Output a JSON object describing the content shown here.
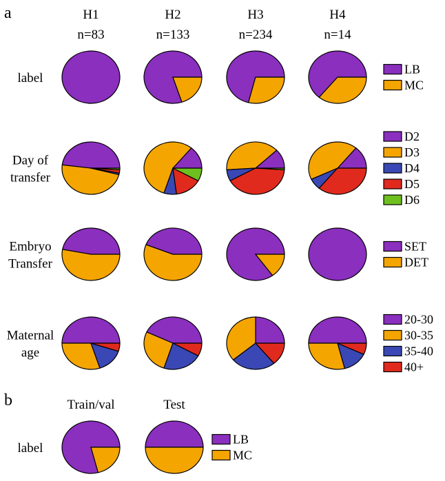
{
  "panels": [
    "a",
    "b"
  ],
  "colors": {
    "LB": "#8b2fbf",
    "MC": "#f5a500",
    "D2": "#8b2fbf",
    "D3": "#f5a500",
    "D4": "#3a48b5",
    "D5": "#e02a1d",
    "D6": "#6ec01e",
    "SET": "#8b2fbf",
    "DET": "#f5a500",
    "20-30": "#8b2fbf",
    "30-35": "#f5a500",
    "35-40": "#3a48b5",
    "40+": "#e02a1d"
  },
  "chart_data": [
    {
      "type": "pie",
      "panel": "a",
      "columns": [
        {
          "title": "H1",
          "n": "n=83"
        },
        {
          "title": "H2",
          "n": "n=133"
        },
        {
          "title": "H3",
          "n": "n=234"
        },
        {
          "title": "H4",
          "n": "n=14"
        }
      ],
      "rows": [
        {
          "label": [
            "label"
          ],
          "legend": [
            "LB",
            "MC"
          ],
          "pies": [
            [
              {
                "name": "LB",
                "value": 100
              },
              {
                "name": "MC",
                "value": 0
              }
            ],
            [
              {
                "name": "LB",
                "value": 80
              },
              {
                "name": "MC",
                "value": 20
              }
            ],
            [
              {
                "name": "LB",
                "value": 71
              },
              {
                "name": "MC",
                "value": 29
              }
            ],
            [
              {
                "name": "LB",
                "value": 64
              },
              {
                "name": "MC",
                "value": 36
              }
            ]
          ]
        },
        {
          "label": [
            "Day of",
            "transfer"
          ],
          "legend": [
            "D2",
            "D3",
            "D4",
            "D5",
            "D6"
          ],
          "pies": [
            [
              {
                "name": "D2",
                "value": 48
              },
              {
                "name": "D3",
                "value": 48
              },
              {
                "name": "D4",
                "value": 1
              },
              {
                "name": "D5",
                "value": 2
              },
              {
                "name": "D6",
                "value": 1
              }
            ],
            [
              {
                "name": "D2",
                "value": 14
              },
              {
                "name": "D3",
                "value": 56
              },
              {
                "name": "D4",
                "value": 7
              },
              {
                "name": "D5",
                "value": 15
              },
              {
                "name": "D6",
                "value": 8
              }
            ],
            [
              {
                "name": "D2",
                "value": 12
              },
              {
                "name": "D3",
                "value": 39
              },
              {
                "name": "D4",
                "value": 7
              },
              {
                "name": "D5",
                "value": 41
              },
              {
                "name": "D6",
                "value": 1
              }
            ],
            [
              {
                "name": "D2",
                "value": 14
              },
              {
                "name": "D3",
                "value": 43
              },
              {
                "name": "D4",
                "value": 7
              },
              {
                "name": "D5",
                "value": 36
              },
              {
                "name": "D6",
                "value": 0
              }
            ]
          ]
        },
        {
          "label": [
            "Embryo",
            "Transfer"
          ],
          "legend": [
            "SET",
            "DET"
          ],
          "pies": [
            [
              {
                "name": "SET",
                "value": 47
              },
              {
                "name": "DET",
                "value": 53
              }
            ],
            [
              {
                "name": "SET",
                "value": 44
              },
              {
                "name": "DET",
                "value": 56
              }
            ],
            [
              {
                "name": "SET",
                "value": 85
              },
              {
                "name": "DET",
                "value": 15
              }
            ],
            [
              {
                "name": "SET",
                "value": 100
              },
              {
                "name": "DET",
                "value": 0
              }
            ]
          ]
        },
        {
          "label": [
            "Maternal",
            "age"
          ],
          "legend": [
            "20-30",
            "30-35",
            "35-40",
            "40+"
          ],
          "pies": [
            [
              {
                "name": "20-30",
                "value": 50
              },
              {
                "name": "30-35",
                "value": 30
              },
              {
                "name": "35-40",
                "value": 15
              },
              {
                "name": "40+",
                "value": 5
              }
            ],
            [
              {
                "name": "20-30",
                "value": 43
              },
              {
                "name": "30-35",
                "value": 27
              },
              {
                "name": "35-40",
                "value": 22
              },
              {
                "name": "40+",
                "value": 8
              }
            ],
            [
              {
                "name": "20-30",
                "value": 25
              },
              {
                "name": "30-35",
                "value": 36
              },
              {
                "name": "35-40",
                "value": 25
              },
              {
                "name": "40+",
                "value": 14
              }
            ],
            [
              {
                "name": "20-30",
                "value": 50
              },
              {
                "name": "30-35",
                "value": 29
              },
              {
                "name": "35-40",
                "value": 14
              },
              {
                "name": "40+",
                "value": 7
              }
            ]
          ]
        }
      ]
    },
    {
      "type": "pie",
      "panel": "b",
      "columns": [
        {
          "title": "Train/val"
        },
        {
          "title": "Test"
        }
      ],
      "rows": [
        {
          "label": [
            "label"
          ],
          "legend": [
            "LB",
            "MC"
          ],
          "pies": [
            [
              {
                "name": "LB",
                "value": 79
              },
              {
                "name": "MC",
                "value": 21
              }
            ],
            [
              {
                "name": "LB",
                "value": 50
              },
              {
                "name": "MC",
                "value": 50
              }
            ]
          ]
        }
      ]
    }
  ]
}
